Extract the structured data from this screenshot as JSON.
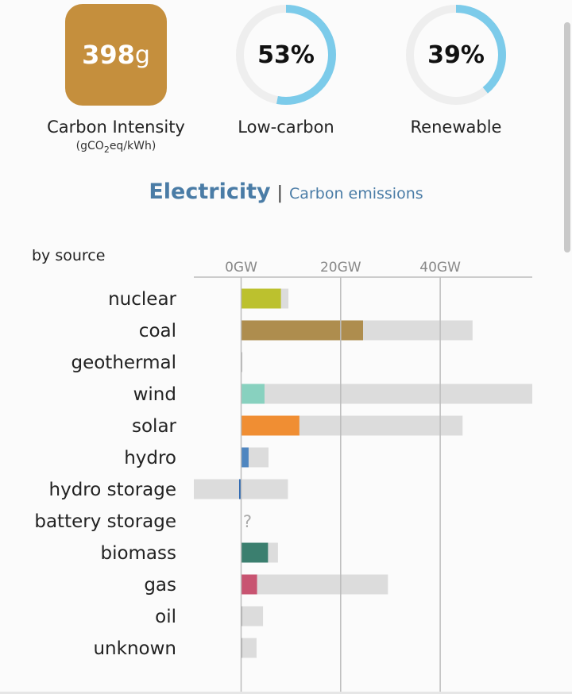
{
  "kpis": {
    "carbon_intensity": {
      "value": "398",
      "unit": "g",
      "label": "Carbon Intensity",
      "sub_prefix": "(gCO",
      "sub_subscript": "2",
      "sub_suffix": "eq/kWh)",
      "color": "#c58f3d"
    },
    "low_carbon": {
      "percent": 53,
      "text": "53%",
      "label": "Low-carbon"
    },
    "renewable": {
      "percent": 39,
      "text": "39%",
      "label": "Renewable"
    },
    "ring_color": "#7ccbea",
    "ring_track_color": "#eeeeee"
  },
  "section": {
    "title": "Electricity",
    "separator": "|",
    "subtitle": "Carbon emissions"
  },
  "by_source_label": "by source",
  "chart_data": {
    "type": "bar",
    "orientation": "horizontal",
    "unit": "GW",
    "x_ticks": [
      0,
      20,
      40
    ],
    "x_tick_labels": [
      "0GW",
      "20GW",
      "40GW"
    ],
    "xlim": [
      -9.5,
      58.5
    ],
    "grid": true,
    "categories": [
      "nuclear",
      "coal",
      "geothermal",
      "wind",
      "solar",
      "hydro",
      "hydro storage",
      "battery storage",
      "biomass",
      "gas",
      "oil",
      "unknown"
    ],
    "production": [
      8.0,
      24.5,
      0.05,
      4.7,
      11.7,
      1.5,
      -0.4,
      null,
      5.4,
      3.2,
      0.15,
      0.2
    ],
    "capacity_min": [
      0,
      0,
      0,
      0,
      0,
      0,
      -9.5,
      null,
      0,
      0,
      0,
      0
    ],
    "capacity_max": [
      9.5,
      46.5,
      0.1,
      58.5,
      44.5,
      5.5,
      9.4,
      null,
      7.4,
      29.5,
      4.4,
      3.1
    ],
    "colors": [
      "#bcc12e",
      "#ae8d4e",
      "#b8b8b8",
      "#88d1bf",
      "#f08e33",
      "#4f86c0",
      "#2c67b1",
      "#aaaaaa",
      "#3b7f6f",
      "#c85471",
      "#aaaaaa",
      "#aaaaaa"
    ],
    "unknown_marker": "?"
  }
}
